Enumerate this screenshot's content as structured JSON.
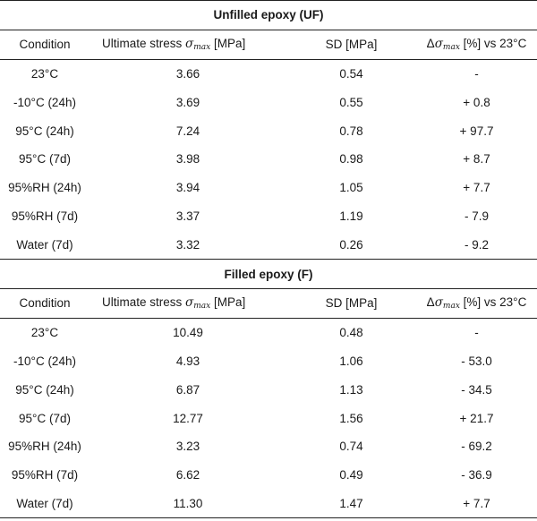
{
  "sections": [
    {
      "title": "Unfilled epoxy (UF)",
      "header": {
        "condition": "Condition",
        "stress_prefix": "Ultimate stress ",
        "stress_symbol": "σ",
        "stress_sub": "max",
        "stress_suffix": " [MPa]",
        "sd": "SD [MPa]",
        "delta_prefix": "Δ",
        "delta_symbol": "σ",
        "delta_sub": "max",
        "delta_suffix": " [%] vs 23°C"
      },
      "rows": [
        {
          "condition": "23°C",
          "stress": "3.66",
          "sd": "0.54",
          "delta": "-"
        },
        {
          "condition": "-10°C (24h)",
          "stress": "3.69",
          "sd": "0.55",
          "delta": "+ 0.8"
        },
        {
          "condition": "95°C (24h)",
          "stress": "7.24",
          "sd": "0.78",
          "delta": "+ 97.7"
        },
        {
          "condition": "95°C (7d)",
          "stress": "3.98",
          "sd": "0.98",
          "delta": "+ 8.7"
        },
        {
          "condition": "95%RH (24h)",
          "stress": "3.94",
          "sd": "1.05",
          "delta": "+ 7.7"
        },
        {
          "condition": "95%RH (7d)",
          "stress": "3.37",
          "sd": "1.19",
          "delta": "- 7.9"
        },
        {
          "condition": "Water (7d)",
          "stress": "3.32",
          "sd": "0.26",
          "delta": "- 9.2"
        }
      ]
    },
    {
      "title": "Filled epoxy (F)",
      "header": {
        "condition": "Condition",
        "stress_prefix": "Ultimate stress ",
        "stress_symbol": "σ",
        "stress_sub": "max",
        "stress_suffix": " [MPa]",
        "sd": "SD [MPa]",
        "delta_prefix": "Δ",
        "delta_symbol": "σ",
        "delta_sub": "max",
        "delta_suffix": " [%] vs 23°C"
      },
      "rows": [
        {
          "condition": "23°C",
          "stress": "10.49",
          "sd": "0.48",
          "delta": "-"
        },
        {
          "condition": "-10°C (24h)",
          "stress": "4.93",
          "sd": "1.06",
          "delta": "- 53.0"
        },
        {
          "condition": "95°C (24h)",
          "stress": "6.87",
          "sd": "1.13",
          "delta": "- 34.5"
        },
        {
          "condition": "95°C (7d)",
          "stress": "12.77",
          "sd": "1.56",
          "delta": "+ 21.7"
        },
        {
          "condition": "95%RH (24h)",
          "stress": "3.23",
          "sd": "0.74",
          "delta": "- 69.2"
        },
        {
          "condition": "95%RH (7d)",
          "stress": "6.62",
          "sd": "0.49",
          "delta": "- 36.9"
        },
        {
          "condition": "Water (7d)",
          "stress": "11.30",
          "sd": "1.47",
          "delta": "+ 7.7"
        }
      ]
    }
  ]
}
